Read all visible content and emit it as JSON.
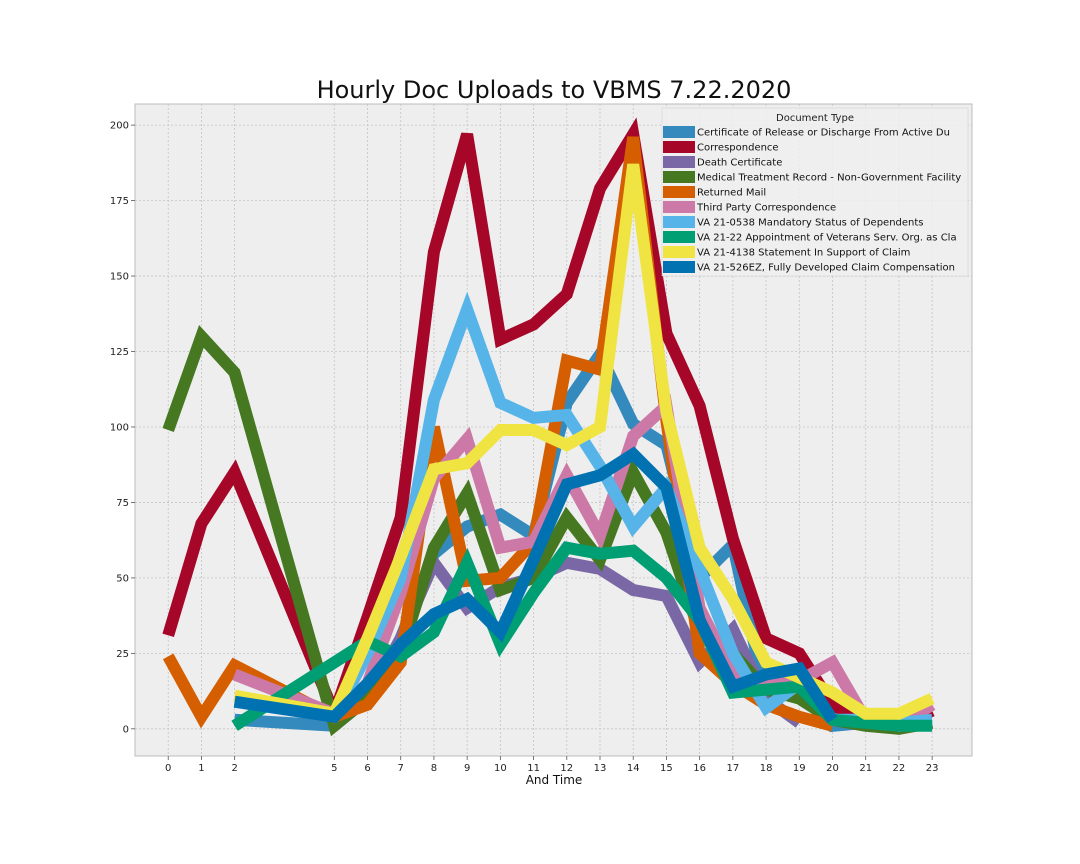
{
  "chart_data": {
    "type": "line",
    "title": "Hourly Doc Uploads to VBMS 7.22.2020",
    "xlabel": "And Time",
    "ylabel": "",
    "x_ticks": [
      0,
      1,
      2,
      5,
      6,
      7,
      8,
      9,
      10,
      11,
      12,
      13,
      14,
      15,
      16,
      17,
      18,
      19,
      20,
      21,
      22,
      23
    ],
    "y_ticks": [
      0,
      25,
      50,
      75,
      100,
      125,
      150,
      175,
      200
    ],
    "xlim": [
      -1,
      24.2
    ],
    "ylim": [
      -9,
      207
    ],
    "grid": true,
    "legend": {
      "title": "Document Type",
      "placement": "top-right"
    },
    "series": [
      {
        "name": "Certificate of Release or Discharge From Active Du",
        "color": "#348ABD",
        "points": [
          [
            2,
            3
          ],
          [
            5,
            1
          ],
          [
            6,
            10
          ],
          [
            7,
            30
          ],
          [
            8,
            58
          ],
          [
            9,
            67
          ],
          [
            10,
            71
          ],
          [
            11,
            64
          ],
          [
            12,
            108
          ],
          [
            13,
            124
          ],
          [
            14,
            101
          ],
          [
            15,
            94
          ],
          [
            16,
            50
          ],
          [
            17,
            61
          ],
          [
            18,
            10
          ],
          [
            19,
            15
          ],
          [
            20,
            1
          ],
          [
            21,
            2
          ],
          [
            22,
            1
          ],
          [
            23,
            2
          ]
        ]
      },
      {
        "name": "Correspondence",
        "color": "#A60628",
        "points": [
          [
            0,
            31
          ],
          [
            1,
            68
          ],
          [
            2,
            85
          ],
          [
            5,
            5
          ],
          [
            6,
            37
          ],
          [
            7,
            70
          ],
          [
            8,
            158
          ],
          [
            9,
            197
          ],
          [
            10,
            129
          ],
          [
            11,
            134
          ],
          [
            12,
            144
          ],
          [
            13,
            179
          ],
          [
            14,
            197
          ],
          [
            15,
            131
          ],
          [
            16,
            107
          ],
          [
            17,
            63
          ],
          [
            18,
            30
          ],
          [
            19,
            25
          ],
          [
            20,
            8
          ],
          [
            21,
            2
          ],
          [
            22,
            1
          ],
          [
            23,
            6
          ]
        ]
      },
      {
        "name": "Death Certificate",
        "color": "#7A68A6",
        "points": [
          [
            5,
            4
          ],
          [
            6,
            9
          ],
          [
            7,
            30
          ],
          [
            8,
            55
          ],
          [
            9,
            40
          ],
          [
            10,
            47
          ],
          [
            11,
            50
          ],
          [
            12,
            55
          ],
          [
            13,
            53
          ],
          [
            14,
            46
          ],
          [
            15,
            44
          ],
          [
            16,
            22
          ],
          [
            17,
            33
          ],
          [
            18,
            10
          ],
          [
            19,
            2
          ]
        ]
      },
      {
        "name": "Medical Treatment Record - Non-Government Facility",
        "color": "#467821",
        "points": [
          [
            0,
            99
          ],
          [
            1,
            130
          ],
          [
            2,
            118
          ],
          [
            5,
            1
          ],
          [
            6,
            10
          ],
          [
            7,
            25
          ],
          [
            8,
            60
          ],
          [
            9,
            78
          ],
          [
            10,
            46
          ],
          [
            11,
            50
          ],
          [
            12,
            70
          ],
          [
            13,
            56
          ],
          [
            14,
            85
          ],
          [
            15,
            65
          ],
          [
            16,
            32
          ],
          [
            17,
            25
          ],
          [
            18,
            13
          ],
          [
            19,
            10
          ],
          [
            20,
            3
          ],
          [
            21,
            1
          ],
          [
            22,
            0
          ],
          [
            23,
            2
          ]
        ]
      },
      {
        "name": "Returned Mail",
        "color": "#D55E00",
        "points": [
          [
            0,
            24
          ],
          [
            1,
            4
          ],
          [
            2,
            21
          ],
          [
            5,
            4
          ],
          [
            6,
            8
          ],
          [
            7,
            22
          ],
          [
            8,
            100
          ],
          [
            9,
            49
          ],
          [
            10,
            50
          ],
          [
            11,
            62
          ],
          [
            12,
            122
          ],
          [
            13,
            119
          ],
          [
            14,
            196
          ],
          [
            15,
            102
          ],
          [
            16,
            25
          ],
          [
            17,
            15
          ],
          [
            18,
            8
          ],
          [
            19,
            4
          ],
          [
            20,
            1
          ]
        ]
      },
      {
        "name": "Third Party Correspondence",
        "color": "#CC79A7",
        "points": [
          [
            2,
            18
          ],
          [
            5,
            5
          ],
          [
            6,
            15
          ],
          [
            7,
            45
          ],
          [
            8,
            83
          ],
          [
            9,
            96
          ],
          [
            10,
            60
          ],
          [
            11,
            62
          ],
          [
            12,
            84
          ],
          [
            13,
            64
          ],
          [
            14,
            97
          ],
          [
            15,
            107
          ],
          [
            16,
            40
          ],
          [
            17,
            18
          ],
          [
            18,
            15
          ],
          [
            19,
            16
          ],
          [
            20,
            22
          ],
          [
            21,
            3
          ],
          [
            22,
            1
          ],
          [
            23,
            8
          ]
        ]
      },
      {
        "name": "VA 21-0538 Mandatory Status of Dependents",
        "color": "#56B4E9",
        "points": [
          [
            5,
            4
          ],
          [
            6,
            25
          ],
          [
            7,
            50
          ],
          [
            8,
            109
          ],
          [
            9,
            139
          ],
          [
            10,
            108
          ],
          [
            11,
            103
          ],
          [
            12,
            104
          ],
          [
            13,
            87
          ],
          [
            14,
            67
          ],
          [
            15,
            80
          ],
          [
            16,
            53
          ],
          [
            17,
            25
          ],
          [
            18,
            7
          ],
          [
            19,
            15
          ],
          [
            20,
            3
          ],
          [
            21,
            3
          ],
          [
            22,
            2
          ],
          [
            23,
            3
          ]
        ]
      },
      {
        "name": "VA 21-22 Appointment of Veterans Serv. Org. as Cla",
        "color": "#009E73",
        "points": [
          [
            2,
            1
          ],
          [
            5,
            22
          ],
          [
            6,
            29
          ],
          [
            7,
            24
          ],
          [
            8,
            32
          ],
          [
            9,
            55
          ],
          [
            10,
            28
          ],
          [
            11,
            45
          ],
          [
            12,
            60
          ],
          [
            13,
            58
          ],
          [
            14,
            59
          ],
          [
            15,
            50
          ],
          [
            16,
            36
          ],
          [
            17,
            12
          ],
          [
            18,
            13
          ],
          [
            19,
            14
          ],
          [
            20,
            3
          ],
          [
            21,
            2
          ],
          [
            22,
            1
          ],
          [
            23,
            1
          ]
        ]
      },
      {
        "name": "VA 21-4138 Statement In Support of Claim",
        "color": "#F0E442",
        "points": [
          [
            2,
            11
          ],
          [
            5,
            5
          ],
          [
            6,
            30
          ],
          [
            7,
            57
          ],
          [
            8,
            86
          ],
          [
            9,
            88
          ],
          [
            10,
            99
          ],
          [
            11,
            99
          ],
          [
            12,
            94
          ],
          [
            13,
            100
          ],
          [
            14,
            187
          ],
          [
            15,
            105
          ],
          [
            16,
            60
          ],
          [
            17,
            43
          ],
          [
            18,
            22
          ],
          [
            19,
            17
          ],
          [
            20,
            12
          ],
          [
            21,
            5
          ],
          [
            22,
            5
          ],
          [
            23,
            10
          ]
        ]
      },
      {
        "name": "VA 21-526EZ, Fully Developed Claim Compensation",
        "color": "#0072B2",
        "points": [
          [
            2,
            9
          ],
          [
            5,
            4
          ],
          [
            6,
            15
          ],
          [
            7,
            28
          ],
          [
            8,
            38
          ],
          [
            9,
            43
          ],
          [
            10,
            32
          ],
          [
            11,
            56
          ],
          [
            12,
            81
          ],
          [
            13,
            84
          ],
          [
            14,
            91
          ],
          [
            15,
            80
          ],
          [
            16,
            36
          ],
          [
            17,
            14
          ],
          [
            18,
            18
          ],
          [
            19,
            20
          ],
          [
            20,
            3
          ]
        ]
      }
    ]
  }
}
